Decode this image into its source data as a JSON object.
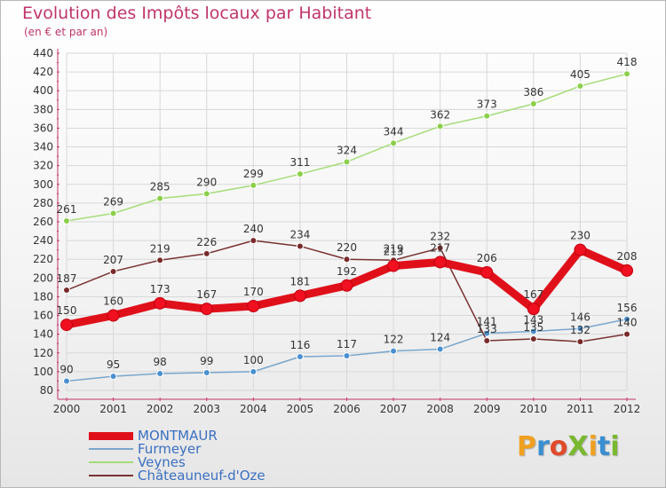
{
  "title": "Evolution des Impôts locaux par Habitant",
  "subtitle": "(en € et par an)",
  "logo_text": "ProXiti",
  "logo_letters": [
    "P",
    "r",
    "o",
    "X",
    "i",
    "t",
    "i"
  ],
  "logo_colors": [
    "#f0a020",
    "#3a8fd0",
    "#e04a2a",
    "#7ab830",
    "#f0a020",
    "#3a8fd0",
    "#7ab830"
  ],
  "colors": {
    "title": "#c0356b",
    "axis": "#c0356b",
    "grid": "#d8d8d8",
    "legend_text": "#3a6fc0"
  },
  "chart_data": {
    "type": "line",
    "title": "Evolution des Impôts locaux par Habitant",
    "subtitle": "(en € et par an)",
    "xlabel": "",
    "ylabel": "",
    "x": [
      "2000",
      "2001",
      "2002",
      "2003",
      "2004",
      "2005",
      "2006",
      "2007",
      "2008",
      "2009",
      "2010",
      "2011",
      "2012"
    ],
    "ylim": [
      80,
      440
    ],
    "ytick_step": 20,
    "grid": true,
    "legend_position": "bottom-left",
    "series": [
      {
        "name": "MONTMAUR",
        "color": "#e0101a",
        "marker_fill": "#f01020",
        "emphasis": true,
        "values": [
          150,
          160,
          173,
          167,
          170,
          181,
          192,
          213,
          217,
          206,
          167,
          230,
          208
        ],
        "labels": [
          "150",
          "160",
          "173",
          "167",
          "170",
          "181",
          "192",
          "213",
          "217",
          "206",
          "167",
          "230",
          "208"
        ]
      },
      {
        "name": "Furmeyer",
        "color": "#7aa6cc",
        "marker_fill": "#4a90d0",
        "emphasis": false,
        "values": [
          90,
          95,
          98,
          99,
          100,
          116,
          117,
          122,
          124,
          141,
          143,
          146,
          156
        ],
        "labels": [
          "90",
          "95",
          "98",
          "99",
          "100",
          "116",
          "117",
          "122",
          "124",
          "141",
          "143",
          "146",
          "156"
        ]
      },
      {
        "name": "Veynes",
        "color": "#a6dc78",
        "marker_fill": "#8ccf4a",
        "emphasis": false,
        "values": [
          261,
          269,
          285,
          290,
          299,
          311,
          324,
          344,
          362,
          373,
          386,
          405,
          418
        ],
        "labels": [
          "261",
          "269",
          "285",
          "290",
          "299",
          "311",
          "324",
          "344",
          "362",
          "373",
          "386",
          "405",
          "418"
        ]
      },
      {
        "name": "Châteauneuf-d'Oze",
        "color": "#7a3232",
        "marker_fill": "#7a2a2a",
        "emphasis": false,
        "values": [
          187,
          207,
          219,
          226,
          240,
          234,
          220,
          219,
          232,
          133,
          135,
          132,
          140
        ],
        "labels": [
          "187",
          "207",
          "219",
          "226",
          "240",
          "234",
          "220",
          "219",
          "232",
          "133",
          "135",
          "132",
          "140"
        ]
      }
    ]
  }
}
